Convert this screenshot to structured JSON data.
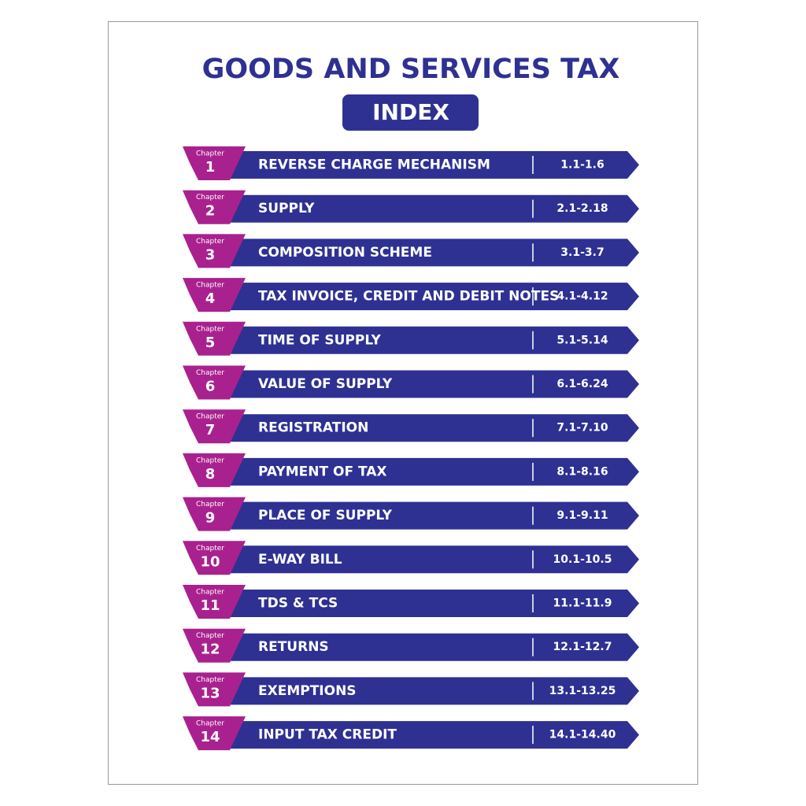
{
  "header": {
    "title": "GOODS AND SERVICES TAX",
    "badge": "INDEX"
  },
  "chapters": [
    {
      "label": "Chapter",
      "number": "1",
      "title": "REVERSE CHARGE MECHANISM",
      "range": "1.1-1.6"
    },
    {
      "label": "Chapter",
      "number": "2",
      "title": "SUPPLY",
      "range": "2.1-2.18"
    },
    {
      "label": "Chapter",
      "number": "3",
      "title": "COMPOSITION SCHEME",
      "range": "3.1-3.7"
    },
    {
      "label": "Chapter",
      "number": "4",
      "title": "TAX INVOICE, CREDIT AND DEBIT NOTES",
      "range": "4.1-4.12"
    },
    {
      "label": "Chapter",
      "number": "5",
      "title": "TIME OF SUPPLY",
      "range": "5.1-5.14"
    },
    {
      "label": "Chapter",
      "number": "6",
      "title": "VALUE OF SUPPLY",
      "range": "6.1-6.24"
    },
    {
      "label": "Chapter",
      "number": "7",
      "title": "REGISTRATION",
      "range": "7.1-7.10"
    },
    {
      "label": "Chapter",
      "number": "8",
      "title": "PAYMENT OF TAX",
      "range": "8.1-8.16"
    },
    {
      "label": "Chapter",
      "number": "9",
      "title": "PLACE OF SUPPLY",
      "range": "9.1-9.11"
    },
    {
      "label": "Chapter",
      "number": "10",
      "title": "E-WAY BILL",
      "range": "10.1-10.5"
    },
    {
      "label": "Chapter",
      "number": "11",
      "title": "TDS & TCS",
      "range": "11.1-11.9"
    },
    {
      "label": "Chapter",
      "number": "12",
      "title": "RETURNS",
      "range": "12.1-12.7"
    },
    {
      "label": "Chapter",
      "number": "13",
      "title": "EXEMPTIONS",
      "range": "13.1-13.25"
    },
    {
      "label": "Chapter",
      "number": "14",
      "title": "INPUT TAX CREDIT",
      "range": "14.1-14.40"
    }
  ]
}
